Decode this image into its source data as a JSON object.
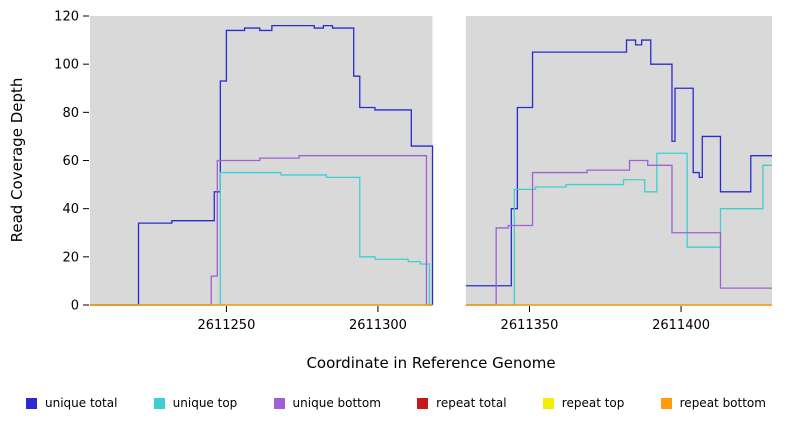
{
  "chart_data": {
    "type": "line",
    "step": true,
    "title": "",
    "xlabel": "Coordinate in Reference Genome",
    "ylabel": "Read Coverage Depth",
    "xlim": [
      2611205,
      2611430
    ],
    "ylim": [
      0,
      120
    ],
    "x_ticks": [
      2611250,
      2611300,
      2611350,
      2611400
    ],
    "y_ticks": [
      0,
      20,
      40,
      60,
      80,
      100,
      120
    ],
    "gap": [
      2611318,
      2611329
    ],
    "plot_bg": "#d9d9d9",
    "series": [
      {
        "name": "unique total",
        "color": "#2a2ad0",
        "points": [
          [
            2611205,
            0
          ],
          [
            2611221,
            34
          ],
          [
            2611232,
            35
          ],
          [
            2611246,
            47
          ],
          [
            2611248,
            93
          ],
          [
            2611250,
            114
          ],
          [
            2611256,
            115
          ],
          [
            2611261,
            114
          ],
          [
            2611265,
            116
          ],
          [
            2611279,
            115
          ],
          [
            2611282,
            116
          ],
          [
            2611285,
            115
          ],
          [
            2611292,
            95
          ],
          [
            2611294,
            82
          ],
          [
            2611299,
            81
          ],
          [
            2611311,
            66
          ],
          [
            2611318,
            0
          ],
          [
            2611329,
            8
          ],
          [
            2611344,
            40
          ],
          [
            2611346,
            82
          ],
          [
            2611351,
            105
          ],
          [
            2611382,
            110
          ],
          [
            2611385,
            108
          ],
          [
            2611387,
            110
          ],
          [
            2611390,
            100
          ],
          [
            2611397,
            68
          ],
          [
            2611398,
            90
          ],
          [
            2611404,
            55
          ],
          [
            2611406,
            53
          ],
          [
            2611407,
            70
          ],
          [
            2611413,
            47
          ],
          [
            2611423,
            62
          ]
        ]
      },
      {
        "name": "unique top",
        "color": "#3ed0d0",
        "points": [
          [
            2611205,
            0
          ],
          [
            2611248,
            55
          ],
          [
            2611268,
            54
          ],
          [
            2611283,
            53
          ],
          [
            2611294,
            20
          ],
          [
            2611299,
            19
          ],
          [
            2611310,
            18
          ],
          [
            2611314,
            17
          ],
          [
            2611317,
            0
          ],
          [
            2611329,
            0
          ],
          [
            2611345,
            48
          ],
          [
            2611352,
            49
          ],
          [
            2611362,
            50
          ],
          [
            2611381,
            52
          ],
          [
            2611388,
            47
          ],
          [
            2611392,
            63
          ],
          [
            2611402,
            24
          ],
          [
            2611413,
            40
          ],
          [
            2611427,
            58
          ]
        ]
      },
      {
        "name": "unique bottom",
        "color": "#a05fd5",
        "points": [
          [
            2611205,
            0
          ],
          [
            2611245,
            12
          ],
          [
            2611247,
            60
          ],
          [
            2611261,
            61
          ],
          [
            2611274,
            62
          ],
          [
            2611316,
            0
          ],
          [
            2611329,
            0
          ],
          [
            2611339,
            32
          ],
          [
            2611343,
            33
          ],
          [
            2611351,
            55
          ],
          [
            2611369,
            56
          ],
          [
            2611383,
            60
          ],
          [
            2611389,
            58
          ],
          [
            2611397,
            30
          ],
          [
            2611413,
            7
          ]
        ]
      },
      {
        "name": "repeat total",
        "color": "#c41a1a",
        "points": [
          [
            2611205,
            0
          ]
        ]
      },
      {
        "name": "repeat top",
        "color": "#f0f000",
        "points": [
          [
            2611205,
            0
          ]
        ]
      },
      {
        "name": "repeat bottom",
        "color": "#ff9a0d",
        "points": [
          [
            2611205,
            0
          ]
        ]
      }
    ]
  }
}
